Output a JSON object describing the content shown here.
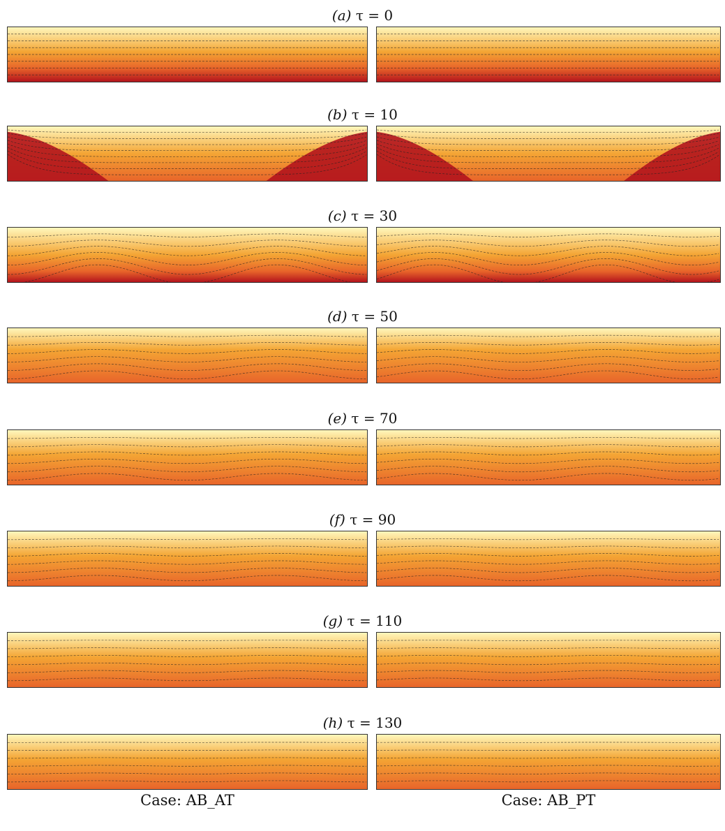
{
  "rows": [
    {
      "label": "(a)",
      "eq": "τ = 0"
    },
    {
      "label": "(b)",
      "eq": "τ = 10"
    },
    {
      "label": "(c)",
      "eq": "τ = 30"
    },
    {
      "label": "(d)",
      "eq": "τ = 50"
    },
    {
      "label": "(e)",
      "eq": "τ = 70"
    },
    {
      "label": "(f)",
      "eq": "τ = 90"
    },
    {
      "label": "(g)",
      "eq": "τ = 110"
    },
    {
      "label": "(h)",
      "eq": "τ = 130"
    }
  ],
  "cases": {
    "left": "Case: AB_AT",
    "right": "Case: AB_PT"
  },
  "colors": {
    "cold": "#fff7bc",
    "mid": "#f4a534",
    "warm": "#e8652a",
    "hot": "#b3141d"
  }
}
